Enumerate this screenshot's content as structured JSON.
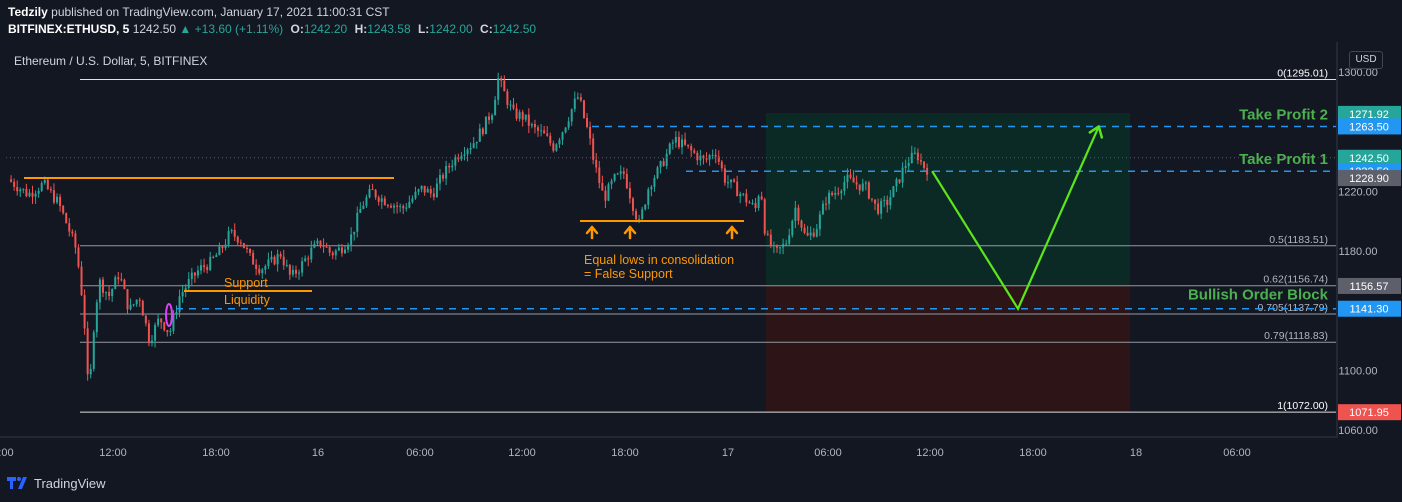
{
  "header": {
    "author": "Tedzily",
    "published_text": "published on TradingView.com, January 17, 2021 11:00:31 CST",
    "symbol": "BITFINEX:ETHUSD, 5",
    "price": "1242.50",
    "change": "▲ +13.60 (+1.11%)",
    "o_label": "O:",
    "o_value": "1242.20",
    "h_label": "H:",
    "h_value": "1243.58",
    "l_label": "L:",
    "l_value": "1242.00",
    "c_label": "C:",
    "c_value": "1242.50"
  },
  "footer": {
    "brand": "TradingView"
  },
  "currency_button": "USD",
  "colors": {
    "background": "#131722",
    "up": "#26a69a",
    "down": "#ef5350",
    "orange": "#ff9800",
    "blue_dashed": "#2196f3",
    "green_arrow": "#5ce61a",
    "label_green": "#4caf50"
  },
  "chart_data": {
    "type": "candlestick",
    "title": "Ethereum / U.S. Dollar, 5, BITFINEX",
    "ylim": [
      1050,
      1310
    ],
    "y_ticks": [
      {
        "value": 1300,
        "label": "1300.00"
      },
      {
        "value": 1220,
        "label": "1220.00"
      },
      {
        "value": 1180,
        "label": "1180.00"
      },
      {
        "value": 1100,
        "label": "1100.00"
      },
      {
        "value": 1060,
        "label": "1060.00"
      }
    ],
    "x_ticks": [
      "12:00",
      "18:00",
      "16",
      "06:00",
      "12:00",
      "18:00",
      "17",
      "06:00",
      "12:00",
      "18:00",
      "18",
      "06:00"
    ],
    "price_tags": [
      {
        "value": 1271.92,
        "label": "1271.92",
        "bg": "#26a69a"
      },
      {
        "value": 1263.5,
        "label": "1263.50",
        "bg": "#2196f3"
      },
      {
        "value": 1242.5,
        "label": "1242.50",
        "bg": "#26a69a"
      },
      {
        "value": 1233.5,
        "label": "1233.50",
        "bg": "#2196f3"
      },
      {
        "value": 1228.9,
        "label": "1228.90",
        "bg": "#5d606b"
      },
      {
        "value": 1156.57,
        "label": "1156.57",
        "bg": "#5d606b"
      },
      {
        "value": 1141.3,
        "label": "1141.30",
        "bg": "#2196f3"
      },
      {
        "value": 1071.95,
        "label": "1071.95",
        "bg": "#ef5350"
      }
    ],
    "fib_levels": [
      {
        "value": 1295.01,
        "label": "0(1295.01)"
      },
      {
        "value": 1183.51,
        "label": "0.5(1183.51)"
      },
      {
        "value": 1156.74,
        "label": "0.62(1156.74)"
      },
      {
        "value": 1137.79,
        "label": "0.705(1137.79)"
      },
      {
        "value": 1118.83,
        "label": "0.79(1118.83)"
      },
      {
        "value": 1072.0,
        "label": "1(1072.00)"
      }
    ],
    "levels": [
      {
        "name": "Take Profit 2",
        "value": 1263.5
      },
      {
        "name": "Take Profit 1",
        "value": 1233.5
      },
      {
        "name": "Bullish Order Block",
        "value": 1141.3
      }
    ],
    "annotations": [
      {
        "text": "Support"
      },
      {
        "text": "Liquidity"
      },
      {
        "text": "Equal lows in consolidation"
      },
      {
        "text": "= False Support"
      }
    ],
    "price_path": [
      [
        0,
        1228
      ],
      [
        0.02,
        1218
      ],
      [
        0.035,
        1225
      ],
      [
        0.05,
        1212
      ],
      [
        0.06,
        1195
      ],
      [
        0.068,
        1180
      ],
      [
        0.075,
        1140
      ],
      [
        0.08,
        1080
      ],
      [
        0.085,
        1130
      ],
      [
        0.09,
        1160
      ],
      [
        0.1,
        1150
      ],
      [
        0.11,
        1165
      ],
      [
        0.12,
        1140
      ],
      [
        0.13,
        1150
      ],
      [
        0.14,
        1120
      ],
      [
        0.15,
        1135
      ],
      [
        0.16,
        1125
      ],
      [
        0.17,
        1150
      ],
      [
        0.18,
        1160
      ],
      [
        0.19,
        1168
      ],
      [
        0.2,
        1172
      ],
      [
        0.21,
        1180
      ],
      [
        0.22,
        1192
      ],
      [
        0.23,
        1188
      ],
      [
        0.24,
        1175
      ],
      [
        0.25,
        1168
      ],
      [
        0.26,
        1172
      ],
      [
        0.27,
        1178
      ],
      [
        0.28,
        1162
      ],
      [
        0.29,
        1170
      ],
      [
        0.3,
        1180
      ],
      [
        0.31,
        1186
      ],
      [
        0.32,
        1178
      ],
      [
        0.33,
        1182
      ],
      [
        0.34,
        1190
      ],
      [
        0.35,
        1210
      ],
      [
        0.36,
        1220
      ],
      [
        0.37,
        1215
      ],
      [
        0.38,
        1212
      ],
      [
        0.39,
        1208
      ],
      [
        0.4,
        1215
      ],
      [
        0.41,
        1222
      ],
      [
        0.42,
        1218
      ],
      [
        0.43,
        1230
      ],
      [
        0.44,
        1240
      ],
      [
        0.45,
        1248
      ],
      [
        0.46,
        1252
      ],
      [
        0.47,
        1262
      ],
      [
        0.48,
        1275
      ],
      [
        0.485,
        1296
      ],
      [
        0.49,
        1288
      ],
      [
        0.5,
        1272
      ],
      [
        0.51,
        1270
      ],
      [
        0.52,
        1262
      ],
      [
        0.53,
        1258
      ],
      [
        0.54,
        1250
      ],
      [
        0.55,
        1262
      ],
      [
        0.56,
        1278
      ],
      [
        0.565,
        1284
      ],
      [
        0.57,
        1270
      ],
      [
        0.575,
        1258
      ],
      [
        0.58,
        1240
      ],
      [
        0.59,
        1215
      ],
      [
        0.6,
        1228
      ],
      [
        0.61,
        1232
      ],
      [
        0.62,
        1208
      ],
      [
        0.625,
        1198
      ],
      [
        0.635,
        1225
      ],
      [
        0.645,
        1235
      ],
      [
        0.66,
        1255
      ],
      [
        0.67,
        1250
      ],
      [
        0.68,
        1245
      ],
      [
        0.69,
        1240
      ],
      [
        0.7,
        1248
      ],
      [
        0.71,
        1228
      ],
      [
        0.72,
        1222
      ],
      [
        0.73,
        1215
      ],
      [
        0.74,
        1208
      ],
      [
        0.745,
        1225
      ],
      [
        0.75,
        1190
      ],
      [
        0.76,
        1178
      ],
      [
        0.77,
        1185
      ],
      [
        0.78,
        1210
      ],
      [
        0.79,
        1188
      ],
      [
        0.8,
        1195
      ],
      [
        0.81,
        1215
      ],
      [
        0.82,
        1220
      ],
      [
        0.83,
        1228
      ],
      [
        0.84,
        1225
      ],
      [
        0.85,
        1222
      ],
      [
        0.86,
        1208
      ],
      [
        0.87,
        1212
      ],
      [
        0.88,
        1225
      ],
      [
        0.89,
        1240
      ],
      [
        0.9,
        1245
      ],
      [
        0.905,
        1238
      ],
      [
        0.91,
        1235
      ]
    ],
    "projection": [
      {
        "t": 0.915,
        "value": 1233.5
      },
      {
        "t": 1.0,
        "value": 1141.3
      },
      {
        "t": 1.08,
        "value": 1263.5
      }
    ]
  }
}
